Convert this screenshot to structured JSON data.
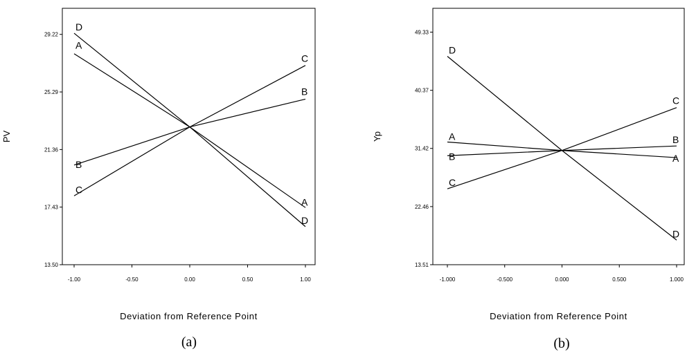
{
  "chart_data": [
    {
      "type": "line",
      "caption": "(a)",
      "xlabel": "Deviation from Reference Point",
      "ylabel": "PV",
      "xlim": [
        -1.0,
        1.0
      ],
      "ylim": [
        13.5,
        31.0
      ],
      "xticks": [
        -1.0,
        -0.5,
        0.0,
        0.5,
        1.0
      ],
      "xtick_labels": [
        "-1.00",
        "-0.50",
        "0.00",
        "0.50",
        "1.00"
      ],
      "yticks": [
        13.5,
        17.43,
        21.36,
        25.29,
        29.22
      ],
      "ytick_labels": [
        "13.50",
        "17.43",
        "21.36",
        "25.29",
        "29.22"
      ],
      "x": [
        -1.0,
        0.0,
        1.0
      ],
      "series": [
        {
          "name": "A",
          "values": [
            27.9,
            22.9,
            17.4
          ]
        },
        {
          "name": "B",
          "values": [
            20.3,
            22.9,
            24.8
          ]
        },
        {
          "name": "C",
          "values": [
            18.2,
            22.9,
            27.1
          ]
        },
        {
          "name": "D",
          "values": [
            29.3,
            22.9,
            16.1
          ]
        }
      ]
    },
    {
      "type": "line",
      "caption": "(b)",
      "xlabel": "Deviation from Reference Point",
      "ylabel": "Yp",
      "xlim": [
        -1.0,
        1.0
      ],
      "ylim": [
        13.51,
        53.0
      ],
      "xticks": [
        -1.0,
        -0.5,
        0.0,
        0.5,
        1.0
      ],
      "xtick_labels": [
        "-1.000",
        "-0.500",
        "0.000",
        "0.500",
        "1.000"
      ],
      "yticks": [
        13.51,
        22.46,
        31.42,
        40.37,
        49.33
      ],
      "ytick_labels": [
        "13.51",
        "22.46",
        "31.42",
        "40.37",
        "49.33"
      ],
      "x": [
        -1.0,
        0.0,
        1.0
      ],
      "series": [
        {
          "name": "A",
          "values": [
            32.4,
            31.1,
            30.0
          ]
        },
        {
          "name": "B",
          "values": [
            30.3,
            31.1,
            31.8
          ]
        },
        {
          "name": "C",
          "values": [
            25.2,
            31.1,
            37.7
          ]
        },
        {
          "name": "D",
          "values": [
            45.6,
            31.1,
            17.3
          ]
        }
      ]
    }
  ]
}
